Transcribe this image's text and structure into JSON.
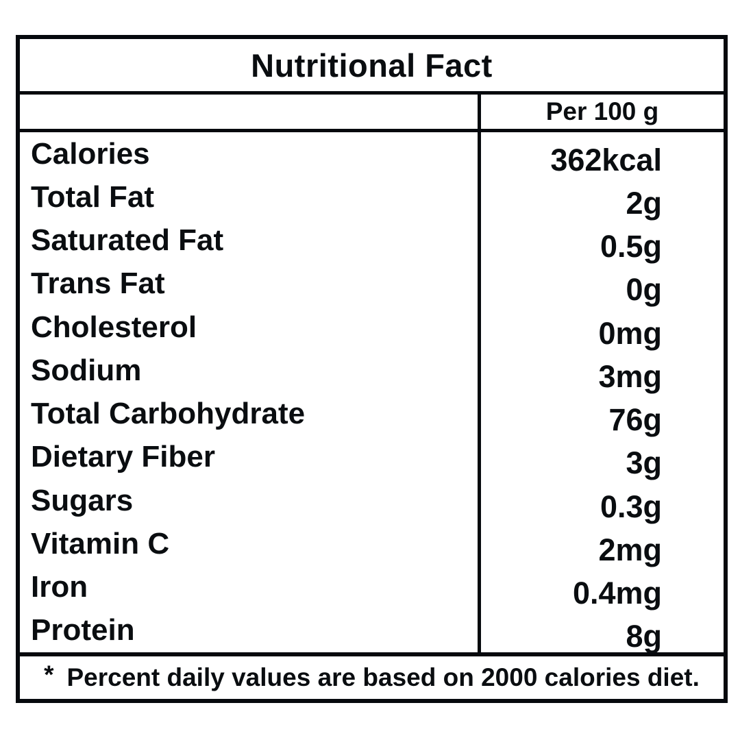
{
  "table": {
    "title": "Nutritional Fact",
    "column_header": "Per 100 g",
    "rows": [
      {
        "label": "Calories",
        "value": "362kcal"
      },
      {
        "label": "Total Fat",
        "value": "2g"
      },
      {
        "label": "Saturated Fat",
        "value": "0.5g"
      },
      {
        "label": "Trans Fat",
        "value": "0g"
      },
      {
        "label": "Cholesterol",
        "value": "0mg"
      },
      {
        "label": "Sodium",
        "value": "3mg"
      },
      {
        "label": "Total Carbohydrate",
        "value": "76g"
      },
      {
        "label": "Dietary Fiber",
        "value": "3g"
      },
      {
        "label": "Sugars",
        "value": "0.3g"
      },
      {
        "label": "Vitamin C",
        "value": "2mg"
      },
      {
        "label": "Iron",
        "value": "0.4mg"
      },
      {
        "label": "Protein",
        "value": "8g"
      }
    ],
    "footnote_marker": "*",
    "footnote": "Percent daily values are based on 2000 calories diet."
  },
  "colors": {
    "border": "#06090d",
    "text": "#0a0d10",
    "background": "#ffffff"
  }
}
